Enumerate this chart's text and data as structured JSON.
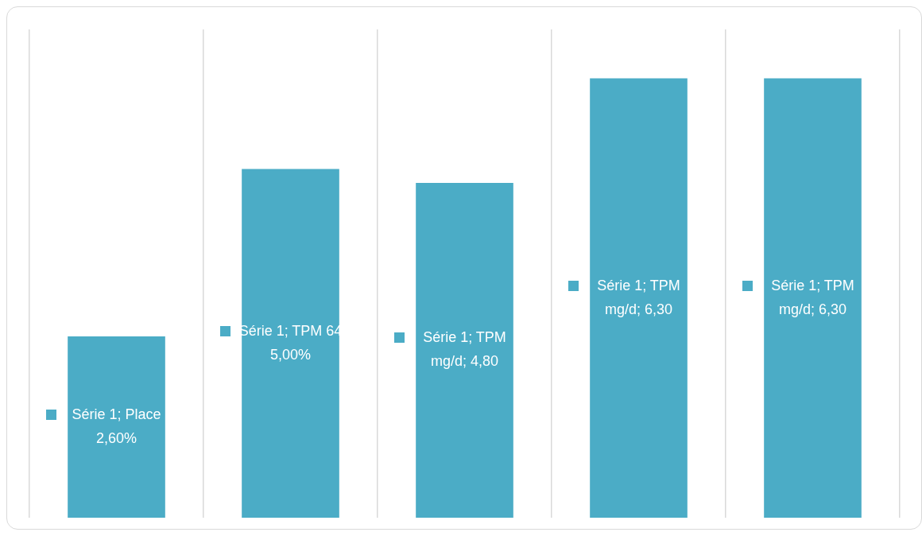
{
  "chart_data": {
    "type": "bar",
    "categories": [
      null,
      null,
      null,
      null,
      null
    ],
    "series": [
      {
        "color": "#4bacc6",
        "values": [
          2.6,
          5.0,
          4.8,
          6.3,
          6.3
        ],
        "value_labels": [
          "Série 1; Place\n2,60%",
          "Série 1; TPM 64\n5,00%",
          "Série 1; TPM\nmg/d; 4,80",
          "Série 1; TPM\nmg/d; 6,30",
          "Série 1; TPM\nmg/d; 6,30"
        ]
      }
    ],
    "relative": false,
    "ylim": [
      0,
      7
    ],
    "grid": "x",
    "legend": false,
    "tick_labels": false
  }
}
